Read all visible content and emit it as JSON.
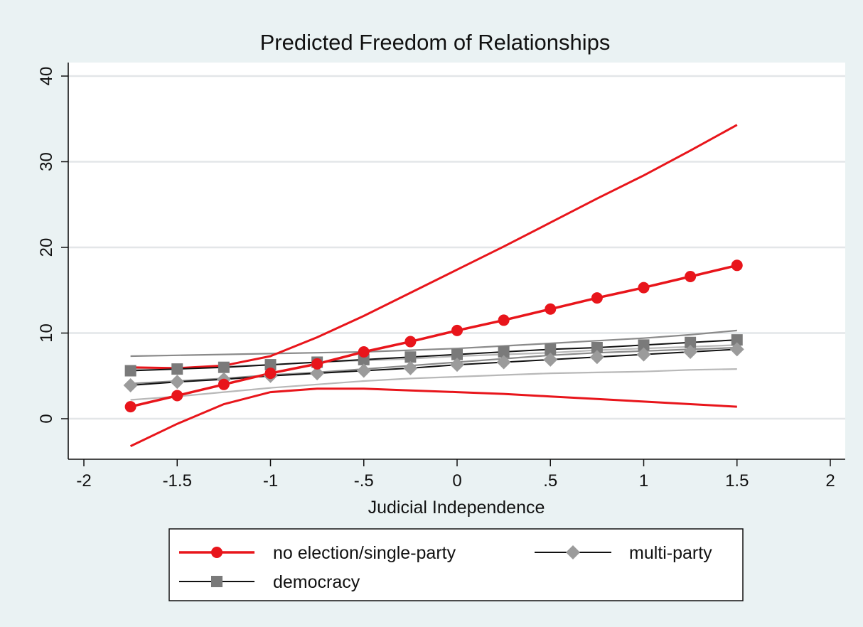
{
  "chart_data": {
    "type": "line",
    "title": "Predicted Freedom of Relationships",
    "xlabel": "Judicial Independence",
    "ylabel": "",
    "xlim": [
      -2,
      2
    ],
    "ylim": [
      -5,
      42
    ],
    "x_ticks": [
      -2,
      -1.5,
      -1,
      -0.5,
      0,
      0.5,
      1,
      1.5,
      2
    ],
    "x_tick_labels": [
      "-2",
      "-1.5",
      "-1",
      "-.5",
      "0",
      ".5",
      "1",
      "1.5",
      "2"
    ],
    "y_ticks": [
      0,
      10,
      20,
      30,
      40
    ],
    "y_tick_labels": [
      "0",
      "10",
      "20",
      "30",
      "40"
    ],
    "grid": true,
    "legend_position": "bottom",
    "x": [
      -1.75,
      -1.5,
      -1.25,
      -1,
      -0.75,
      -0.5,
      -0.25,
      0,
      0.25,
      0.5,
      0.75,
      1,
      1.25,
      1.5
    ],
    "series": [
      {
        "name": "no election/single-party",
        "color": "#e8151b",
        "marker": "circle",
        "values": [
          1.4,
          2.7,
          4.0,
          5.3,
          6.4,
          7.8,
          9.0,
          10.3,
          11.5,
          12.8,
          14.1,
          15.3,
          16.6,
          17.9
        ],
        "ci_upper": [
          6.0,
          5.9,
          6.2,
          7.3,
          9.5,
          12.0,
          14.7,
          17.4,
          20.1,
          22.9,
          25.7,
          28.4,
          31.3,
          34.3
        ],
        "ci_lower": [
          -3.2,
          -0.6,
          1.7,
          3.1,
          3.5,
          3.5,
          3.3,
          3.1,
          2.9,
          2.6,
          2.3,
          2.0,
          1.7,
          1.4
        ]
      },
      {
        "name": "multi-party",
        "color": "#9b9b9b",
        "line_color": "#111111",
        "marker": "diamond",
        "values": [
          3.9,
          4.3,
          4.6,
          5.0,
          5.3,
          5.6,
          5.9,
          6.3,
          6.6,
          6.9,
          7.2,
          7.5,
          7.8,
          8.1
        ],
        "ci_upper": [
          5.8,
          5.9,
          6.1,
          6.3,
          6.6,
          6.8,
          7.0,
          7.3,
          7.5,
          7.7,
          8.0,
          8.2,
          8.4,
          8.6
        ],
        "ci_lower": [
          2.2,
          2.6,
          3.1,
          3.6,
          4.0,
          4.4,
          4.7,
          4.9,
          5.1,
          5.3,
          5.4,
          5.5,
          5.7,
          5.8
        ]
      },
      {
        "name": "democracy",
        "color": "#7a7a7a",
        "line_color": "#111111",
        "marker": "square",
        "values": [
          5.6,
          5.8,
          6.0,
          6.3,
          6.6,
          6.9,
          7.2,
          7.5,
          7.8,
          8.1,
          8.3,
          8.6,
          8.9,
          9.2
        ],
        "ci_upper": [
          7.3,
          7.4,
          7.5,
          7.6,
          7.7,
          7.8,
          8.0,
          8.2,
          8.5,
          8.8,
          9.1,
          9.4,
          9.8,
          10.3
        ],
        "ci_lower": [
          4.1,
          4.4,
          4.7,
          5.1,
          5.4,
          5.8,
          6.2,
          6.6,
          7.0,
          7.4,
          7.7,
          7.9,
          8.1,
          8.3
        ]
      }
    ]
  }
}
